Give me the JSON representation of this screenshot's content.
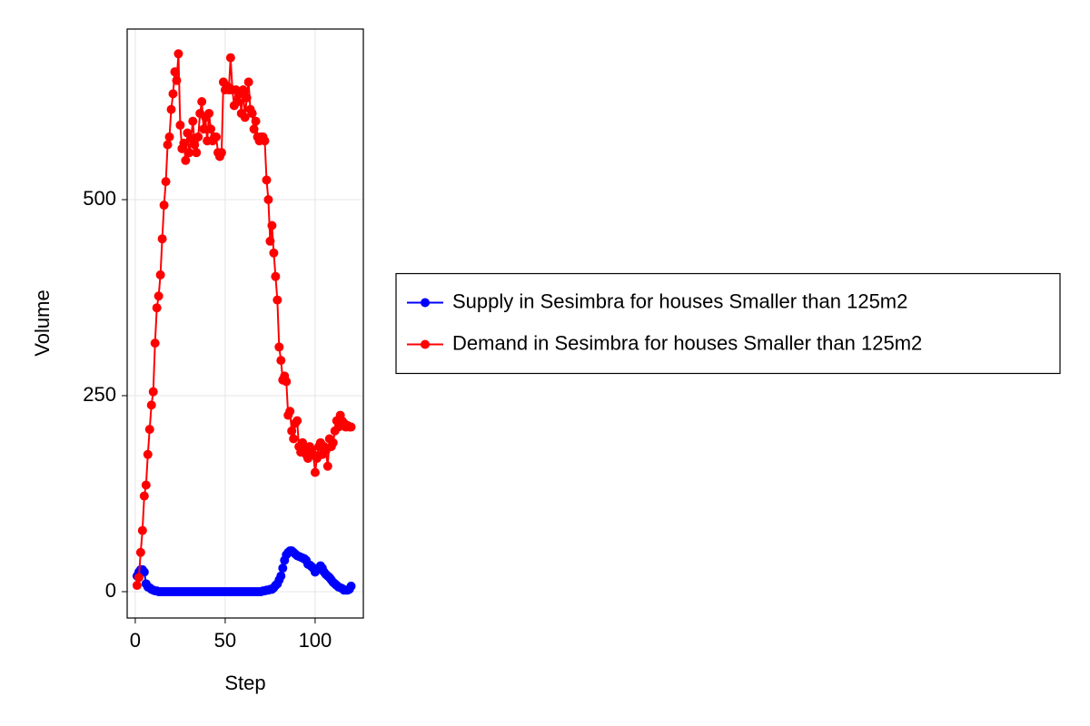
{
  "chart_data": {
    "type": "line",
    "xlabel": "Step",
    "ylabel": "Volume",
    "x": [
      1,
      2,
      3,
      4,
      5,
      6,
      7,
      8,
      9,
      10,
      11,
      12,
      13,
      14,
      15,
      16,
      17,
      18,
      19,
      20,
      21,
      22,
      23,
      24,
      25,
      26,
      27,
      28,
      29,
      30,
      31,
      32,
      33,
      34,
      35,
      36,
      37,
      38,
      39,
      40,
      41,
      42,
      43,
      44,
      45,
      46,
      47,
      48,
      49,
      50,
      51,
      52,
      53,
      54,
      55,
      56,
      57,
      58,
      59,
      60,
      61,
      62,
      63,
      64,
      65,
      66,
      67,
      68,
      69,
      70,
      71,
      72,
      73,
      74,
      75,
      76,
      77,
      78,
      79,
      80,
      81,
      82,
      83,
      84,
      85,
      86,
      87,
      88,
      89,
      90,
      91,
      92,
      93,
      94,
      95,
      96,
      97,
      98,
      99,
      100,
      101,
      102,
      103,
      104,
      105,
      106,
      107,
      108,
      109,
      110,
      111,
      112,
      113,
      114,
      115,
      116,
      117,
      118,
      119,
      120
    ],
    "series": [
      {
        "name": "Supply in Sesimbra for houses Smaller than 125m2",
        "color": "#0000ff",
        "values": [
          20,
          25,
          28,
          28,
          25,
          10,
          6,
          5,
          3,
          2,
          1,
          1,
          0,
          0,
          0,
          0,
          0,
          0,
          0,
          0,
          0,
          0,
          0,
          0,
          0,
          0,
          0,
          0,
          0,
          0,
          0,
          0,
          0,
          0,
          0,
          0,
          0,
          0,
          0,
          0,
          0,
          0,
          0,
          0,
          0,
          0,
          0,
          0,
          0,
          0,
          0,
          0,
          0,
          0,
          0,
          0,
          0,
          0,
          0,
          0,
          0,
          0,
          0,
          0,
          0,
          0,
          0,
          0,
          0,
          0,
          1,
          1,
          2,
          2,
          3,
          3,
          5,
          8,
          10,
          15,
          20,
          30,
          40,
          47,
          50,
          52,
          52,
          50,
          48,
          46,
          45,
          44,
          43,
          42,
          40,
          35,
          34,
          32,
          30,
          25,
          28,
          30,
          33,
          30,
          25,
          22,
          20,
          18,
          15,
          12,
          10,
          8,
          6,
          5,
          4,
          2,
          2,
          2,
          3,
          7
        ]
      },
      {
        "name": "Demand in Sesimbra for houses Smaller than 125m2",
        "color": "#ff0000",
        "values": [
          8,
          18,
          50,
          78,
          122,
          136,
          175,
          207,
          238,
          255,
          317,
          362,
          377,
          404,
          450,
          493,
          523,
          570,
          580,
          615,
          635,
          663,
          652,
          686,
          595,
          565,
          572,
          550,
          585,
          560,
          578,
          600,
          570,
          560,
          580,
          610,
          625,
          590,
          605,
          575,
          610,
          590,
          575,
          580,
          580,
          560,
          555,
          560,
          650,
          640,
          645,
          640,
          681,
          640,
          620,
          640,
          625,
          635,
          610,
          640,
          605,
          630,
          650,
          615,
          610,
          590,
          600,
          580,
          575,
          580,
          580,
          575,
          525,
          500,
          447,
          467,
          432,
          402,
          372,
          312,
          295,
          270,
          275,
          268,
          225,
          230,
          205,
          195,
          215,
          218,
          185,
          178,
          190,
          185,
          175,
          170,
          185,
          180,
          175,
          152,
          170,
          185,
          190,
          175,
          185,
          180,
          160,
          195,
          185,
          190,
          205,
          218,
          210,
          225,
          218,
          215,
          210,
          212,
          210,
          210
        ]
      }
    ],
    "xlim": [
      -4.5,
      126.8
    ],
    "xticks": [
      0,
      50,
      100
    ],
    "ylim": [
      -33.6,
      717.6
    ],
    "yticks": [
      0,
      250,
      500
    ],
    "grid": true,
    "legend": "right"
  }
}
